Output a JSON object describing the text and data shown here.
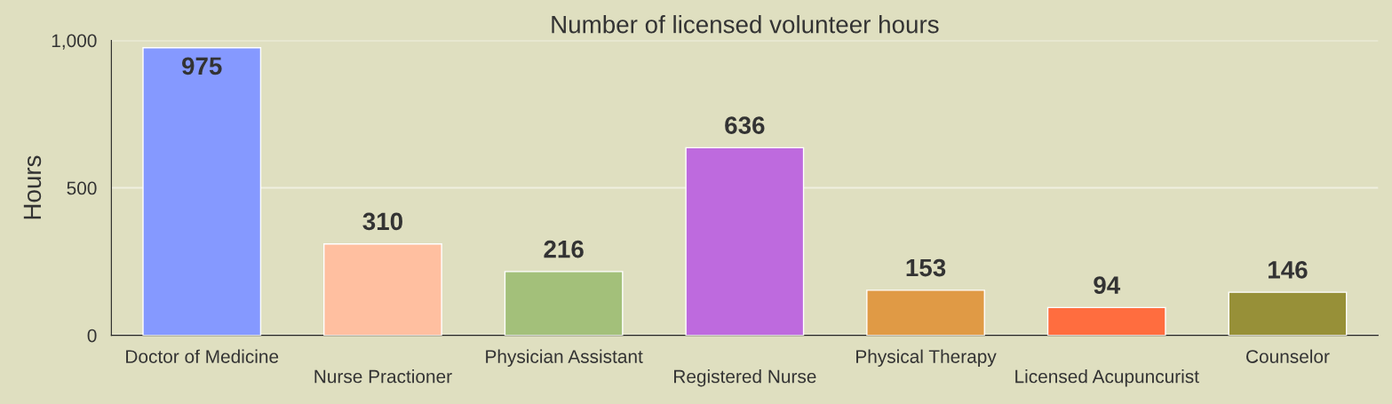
{
  "chart_data": {
    "type": "bar",
    "title": "Number of licensed volunteer hours",
    "ylabel": "Hours",
    "categories": [
      "Doctor of Medicine",
      "Nurse Practioner",
      "Physician Assistant",
      "Registered Nurse",
      "Physical Therapy",
      "Licensed Acupuncurist",
      "Counselor"
    ],
    "values": [
      975,
      310,
      216,
      636,
      153,
      94,
      146
    ],
    "colors": [
      "#8599ff",
      "#ffbfa0",
      "#a3c07a",
      "#be6ade",
      "#e09a45",
      "#ff6d3f",
      "#979038"
    ],
    "ylim": [
      0,
      1000
    ],
    "yticks": [
      0,
      500,
      {
        "value": 1000,
        "label": "1,000"
      }
    ],
    "grid": "y",
    "data_labels": true
  }
}
